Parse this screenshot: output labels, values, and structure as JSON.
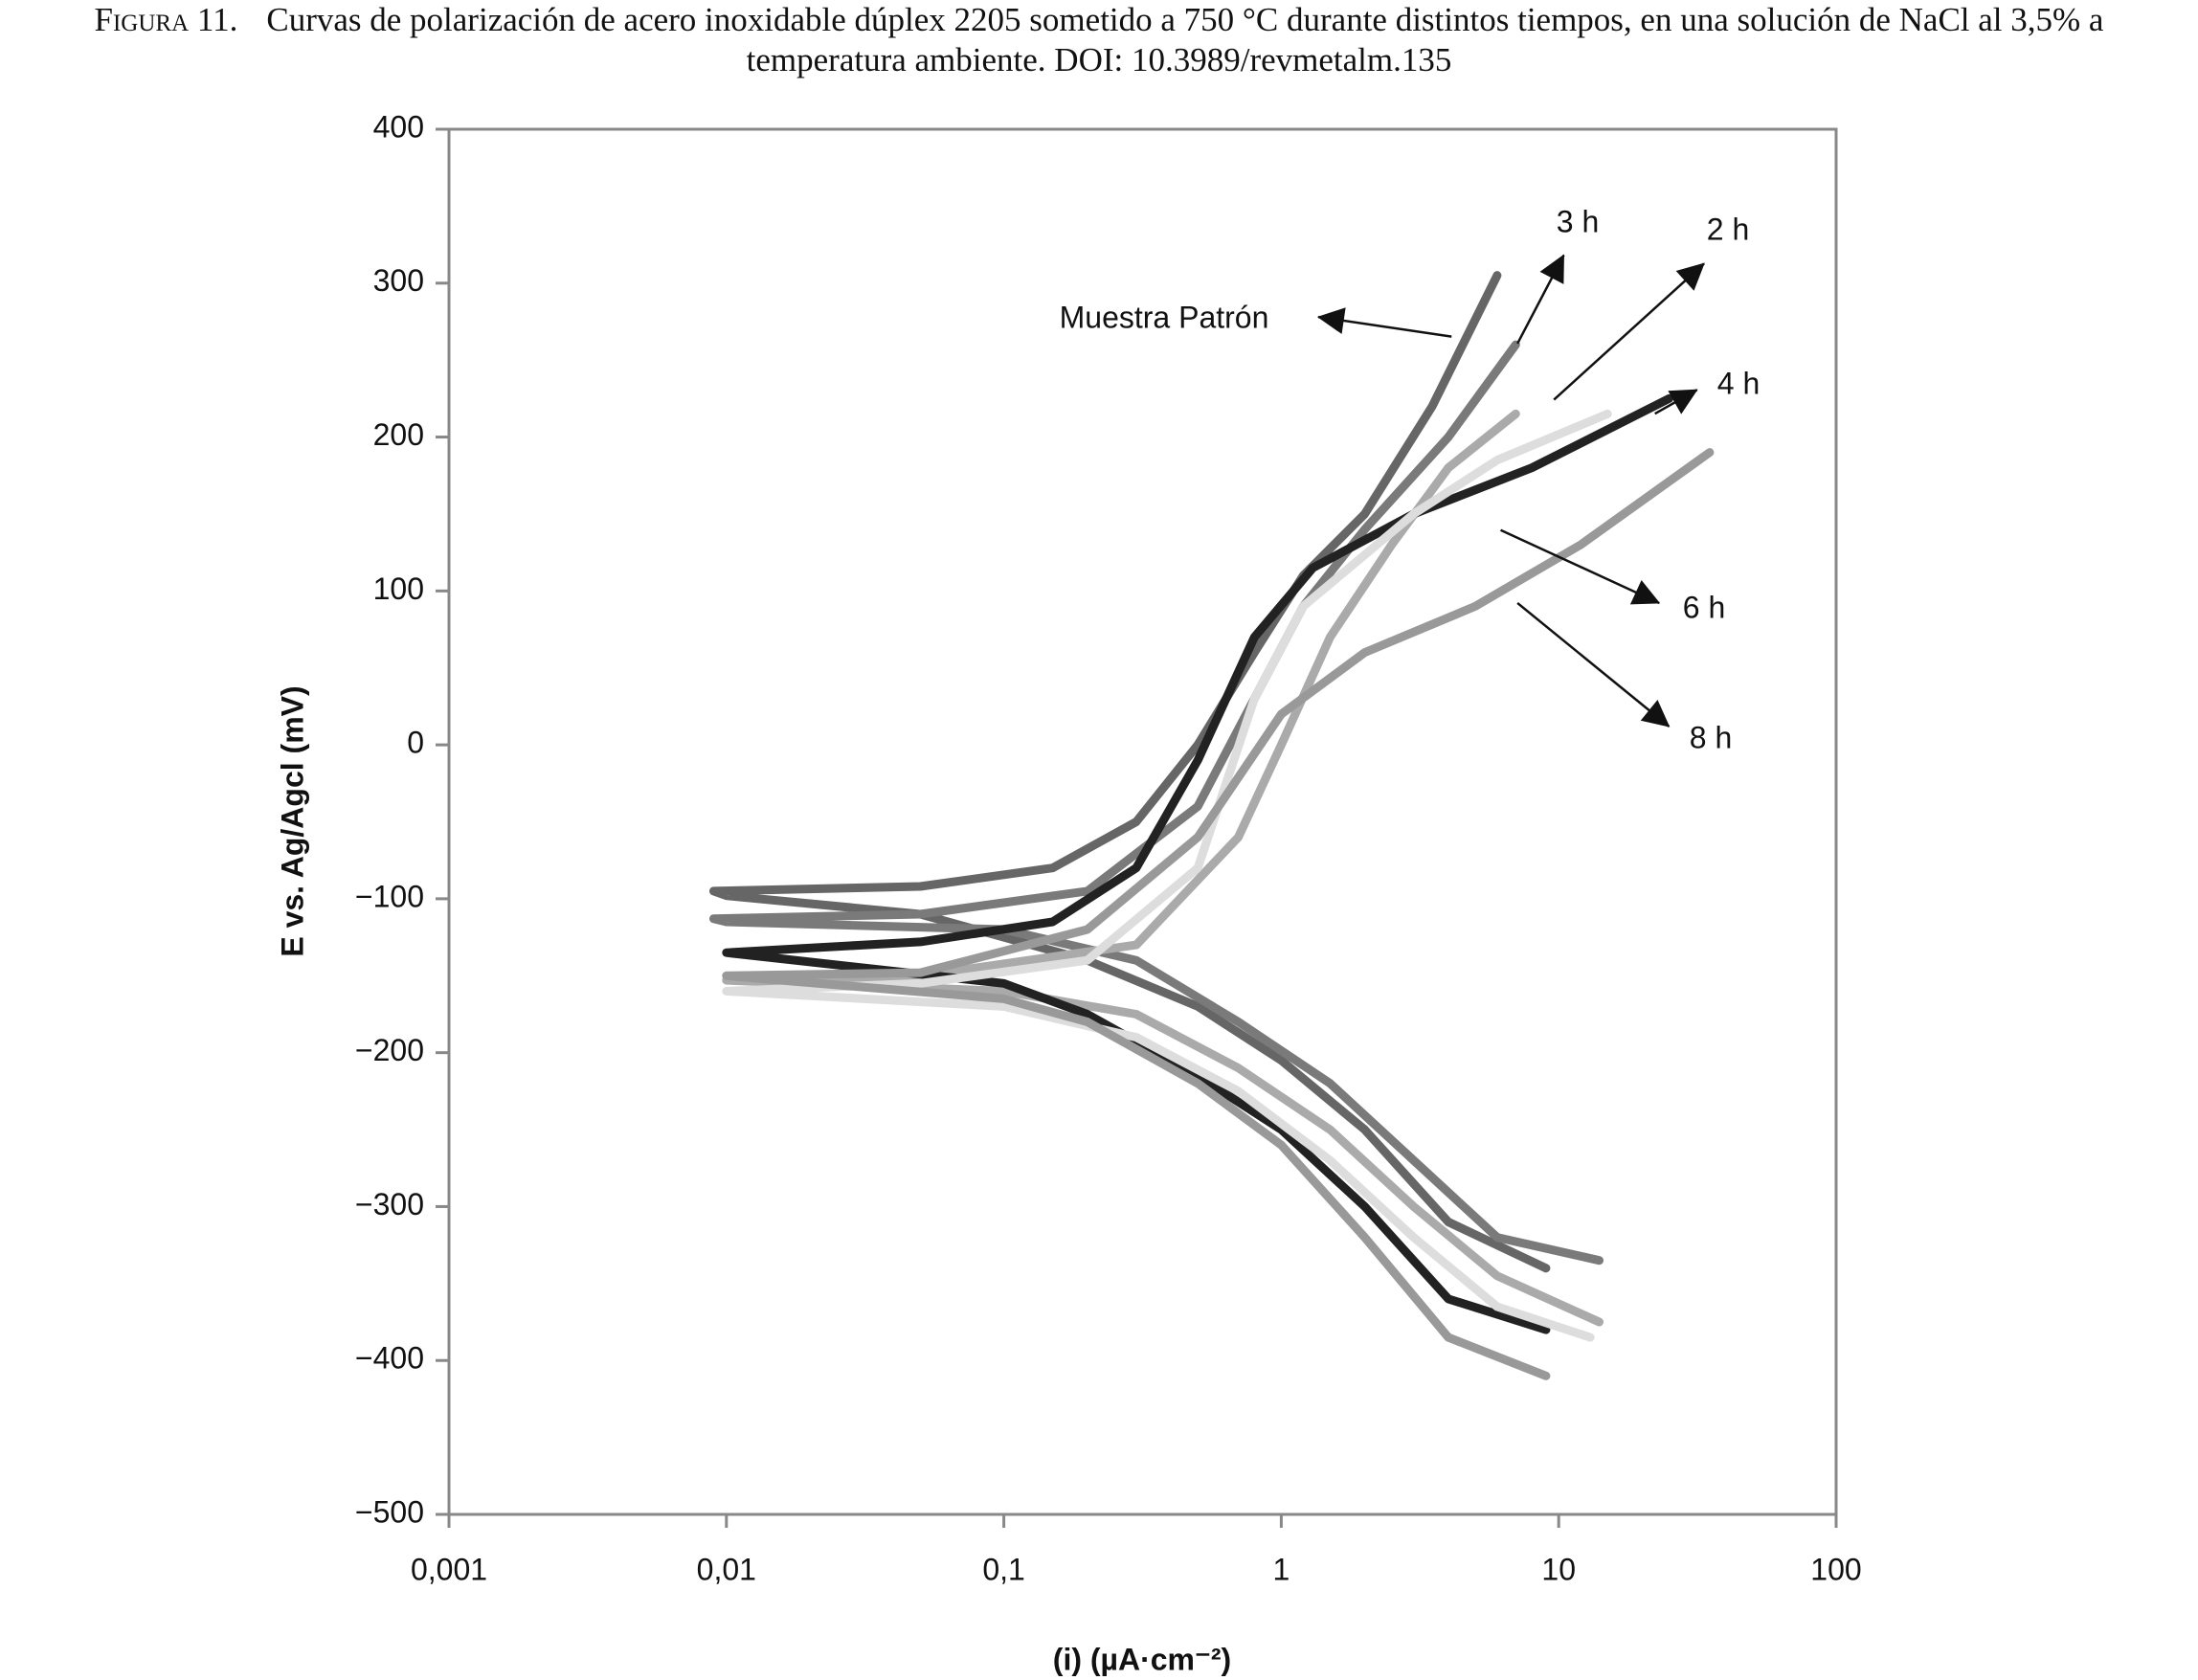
{
  "caption_label": "Figura 11.",
  "caption": "Curvas de polarización de acero inoxidable dúplex 2205 sometido a 750 °C durante distintos tiempos, en una solución de NaCl al 3,5% a temperatura ambiente. DOI: 10.3989/revmetalm.135",
  "chart_data": {
    "type": "line",
    "xlabel": "(i) (µA·cm⁻²)",
    "ylabel": "E vs. Ag/Agcl (mV)",
    "xscale": "log",
    "xlim": [
      0.001,
      100
    ],
    "xticks": [
      {
        "value": 0.001,
        "label": "0,001"
      },
      {
        "value": 0.01,
        "label": "0,01"
      },
      {
        "value": 0.1,
        "label": "0,1"
      },
      1,
      10,
      100
    ],
    "ylim": [
      -500,
      400
    ],
    "yticks": [
      {
        "value": -500,
        "label": "−500"
      },
      {
        "value": -400,
        "label": "−400"
      },
      {
        "value": -300,
        "label": "−300"
      },
      {
        "value": -200,
        "label": "−200"
      },
      {
        "value": -100,
        "label": "−100"
      },
      0,
      100,
      200,
      300,
      400
    ],
    "grid": false,
    "series": [
      {
        "name": "Muestra Patrón",
        "color": "#666666",
        "x": [
          9,
          4,
          2,
          1,
          0.5,
          0.2,
          0.05,
          0.01,
          0.009,
          0.05,
          0.15,
          0.3,
          0.5,
          0.8,
          1.2,
          2,
          3.5,
          6
        ],
        "values": [
          -340,
          -310,
          -250,
          -205,
          -170,
          -140,
          -110,
          -98,
          -95,
          -92,
          -80,
          -50,
          0,
          60,
          110,
          150,
          220,
          305
        ]
      },
      {
        "name": "3 h",
        "color": "#7a7a7a",
        "x": [
          14,
          6,
          3,
          1.5,
          0.7,
          0.3,
          0.1,
          0.01,
          0.009,
          0.05,
          0.2,
          0.5,
          0.8,
          1.2,
          2,
          4,
          7
        ],
        "values": [
          -335,
          -320,
          -270,
          -220,
          -180,
          -140,
          -120,
          -115,
          -113,
          -110,
          -95,
          -40,
          30,
          90,
          140,
          200,
          260
        ]
      },
      {
        "name": "2 h",
        "color": "#aaaaaa",
        "x": [
          14,
          6,
          3,
          1.5,
          0.7,
          0.3,
          0.1,
          0.01,
          0.05,
          0.3,
          0.7,
          1,
          1.5,
          2.5,
          4,
          7
        ],
        "values": [
          -375,
          -345,
          -300,
          -250,
          -210,
          -175,
          -160,
          -153,
          -150,
          -130,
          -60,
          0,
          70,
          130,
          180,
          215
        ]
      },
      {
        "name": "4 h",
        "color": "#222222",
        "x": [
          9,
          4,
          2,
          1,
          0.5,
          0.2,
          0.1,
          0.01,
          0.05,
          0.15,
          0.3,
          0.5,
          0.8,
          1.3,
          3,
          8,
          25
        ],
        "values": [
          -380,
          -360,
          -300,
          -250,
          -215,
          -175,
          -155,
          -135,
          -128,
          -115,
          -80,
          -10,
          70,
          115,
          150,
          180,
          225
        ]
      },
      {
        "name": "6 h",
        "color": "#dddddd",
        "x": [
          13,
          6,
          3,
          1.5,
          0.7,
          0.3,
          0.1,
          0.01,
          0.05,
          0.2,
          0.5,
          0.8,
          1.2,
          3,
          6,
          15
        ],
        "values": [
          -385,
          -365,
          -320,
          -270,
          -225,
          -190,
          -170,
          -160,
          -155,
          -140,
          -80,
          30,
          90,
          150,
          185,
          215
        ]
      },
      {
        "name": "8 h",
        "color": "#999999",
        "x": [
          9,
          4,
          2,
          1,
          0.5,
          0.2,
          0.1,
          0.01,
          0.05,
          0.2,
          0.5,
          1,
          2,
          5,
          12,
          35
        ],
        "values": [
          -410,
          -385,
          -320,
          -260,
          -220,
          -180,
          -165,
          -150,
          -148,
          -120,
          -60,
          20,
          60,
          90,
          130,
          190
        ]
      }
    ]
  }
}
